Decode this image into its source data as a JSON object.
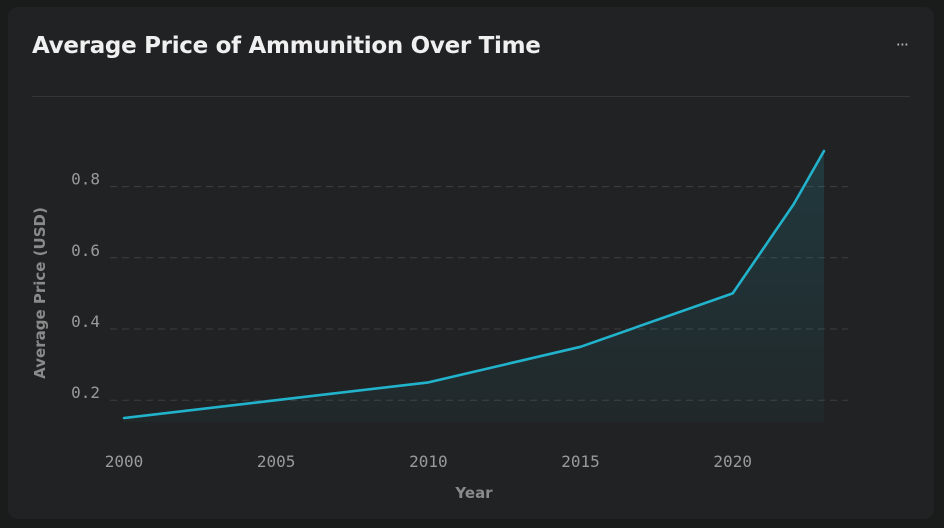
{
  "header": {
    "title": "Average Price of Ammunition Over Time",
    "menu_label": "···"
  },
  "colors": {
    "line": "#22b3cc",
    "grid": "#3e3f40"
  },
  "chart_data": {
    "type": "line",
    "title": "Average Price of Ammunition Over Time",
    "xlabel": "Year",
    "ylabel": "Average Price (USD)",
    "x": [
      2000,
      2005,
      2010,
      2015,
      2020,
      2022,
      2023
    ],
    "series": [
      {
        "name": "Average Price (USD)",
        "values": [
          0.15,
          0.2,
          0.25,
          0.35,
          0.5,
          0.75,
          0.9
        ]
      }
    ],
    "x_ticks": [
      {
        "value": 2000,
        "label": "2000"
      },
      {
        "value": 2005,
        "label": "2005"
      },
      {
        "value": 2010,
        "label": "2010"
      },
      {
        "value": 2015,
        "label": "2015"
      },
      {
        "value": 2020,
        "label": "2020"
      }
    ],
    "y_ticks": [
      {
        "value": 0.2,
        "label": "0.2"
      },
      {
        "value": 0.4,
        "label": "0.4"
      },
      {
        "value": 0.6,
        "label": "0.6"
      },
      {
        "value": 0.8,
        "label": "0.8"
      }
    ],
    "xlim": [
      2000,
      2023
    ],
    "ylim": [
      0.15,
      0.9
    ],
    "grid": "horizontal-dashed",
    "area_fill": true
  }
}
